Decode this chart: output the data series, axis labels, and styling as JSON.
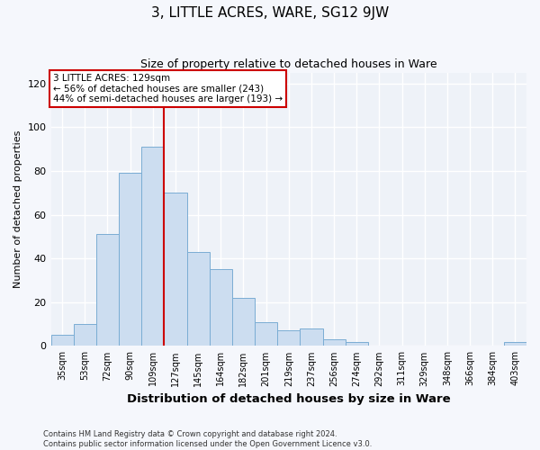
{
  "title": "3, LITTLE ACRES, WARE, SG12 9JW",
  "subtitle": "Size of property relative to detached houses in Ware",
  "xlabel": "Distribution of detached houses by size in Ware",
  "ylabel": "Number of detached properties",
  "bar_labels": [
    "35sqm",
    "53sqm",
    "72sqm",
    "90sqm",
    "109sqm",
    "127sqm",
    "145sqm",
    "164sqm",
    "182sqm",
    "201sqm",
    "219sqm",
    "237sqm",
    "256sqm",
    "274sqm",
    "292sqm",
    "311sqm",
    "329sqm",
    "348sqm",
    "366sqm",
    "384sqm",
    "403sqm"
  ],
  "bar_values": [
    5,
    10,
    51,
    79,
    91,
    70,
    43,
    35,
    22,
    11,
    7,
    8,
    3,
    2,
    0,
    0,
    0,
    0,
    0,
    0,
    2
  ],
  "bar_color": "#ccddf0",
  "bar_edge_color": "#7aadd4",
  "vline_color": "#cc0000",
  "annotation_line1": "3 LITTLE ACRES: 129sqm",
  "annotation_line2": "← 56% of detached houses are smaller (243)",
  "annotation_line3": "44% of semi-detached houses are larger (193) →",
  "annotation_box_color": "#ffffff",
  "annotation_box_edge": "#cc0000",
  "ylim": [
    0,
    125
  ],
  "yticks": [
    0,
    20,
    40,
    60,
    80,
    100,
    120
  ],
  "footer_line1": "Contains HM Land Registry data © Crown copyright and database right 2024.",
  "footer_line2": "Contains public sector information licensed under the Open Government Licence v3.0.",
  "plot_bg_color": "#eef2f8",
  "fig_bg_color": "#f5f7fc"
}
